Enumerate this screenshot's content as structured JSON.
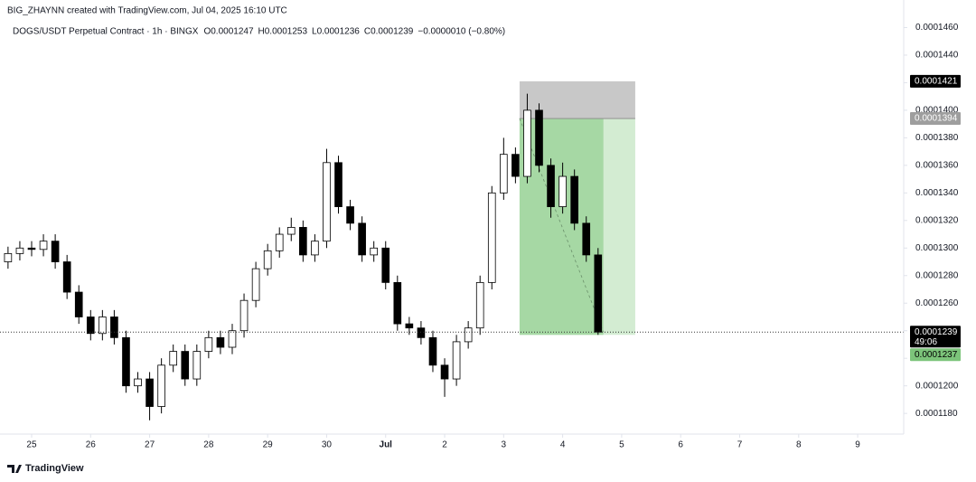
{
  "chart_data": {
    "type": "candlestick",
    "attribution": "BIG_ZHAYNN created with TradingView.com, Jul 04, 2025 16:10 UTC",
    "title": "DOGS/USDT Perpetual Contract · 1h · BINGX",
    "ohlc_texts": [
      "O0.0001247",
      "H0.0001253",
      "L0.0001236",
      "C0.0001239",
      "−0.0000010 (−0.80%)"
    ],
    "x": [
      -0.4,
      -0.2,
      0,
      0.2,
      0.4,
      0.6,
      0.8,
      1,
      1.2,
      1.4,
      1.6,
      1.8,
      2,
      2.2,
      2.4,
      2.6,
      2.8,
      3,
      3.2,
      3.4,
      3.6,
      3.8,
      4,
      4.2,
      4.4,
      4.6,
      4.8,
      5,
      5.2,
      5.4,
      5.6,
      5.8,
      6,
      6.2,
      6.4,
      6.6,
      6.8,
      7,
      7.2,
      7.4,
      7.6,
      7.8,
      8,
      8.2,
      8.4,
      8.6,
      8.8,
      9,
      9.2,
      9.4,
      9.6
    ],
    "open": [
      0.000129,
      0.0001296,
      0.00013,
      0.0001299,
      0.0001305,
      0.000129,
      0.0001268,
      0.000125,
      0.0001238,
      0.000125,
      0.0001235,
      0.00012,
      0.0001205,
      0.0001185,
      0.0001215,
      0.0001225,
      0.0001205,
      0.0001225,
      0.0001235,
      0.0001228,
      0.000124,
      0.0001262,
      0.0001285,
      0.0001298,
      0.000131,
      0.0001315,
      0.0001295,
      0.0001305,
      0.0001362,
      0.000133,
      0.0001318,
      0.0001295,
      0.00013,
      0.0001275,
      0.0001245,
      0.0001242,
      0.0001235,
      0.0001215,
      0.0001205,
      0.0001232,
      0.0001242,
      0.0001275,
      0.000134,
      0.0001368,
      0.0001352,
      0.00014,
      0.000136,
      0.000133,
      0.0001352,
      0.0001318,
      0.0001295
    ],
    "high": [
      0.0001301,
      0.0001305,
      0.0001305,
      0.000131,
      0.000131,
      0.0001295,
      0.0001273,
      0.0001255,
      0.0001255,
      0.0001255,
      0.000124,
      0.000121,
      0.000121,
      0.000122,
      0.000123,
      0.000123,
      0.000123,
      0.000124,
      0.000124,
      0.0001245,
      0.0001267,
      0.000129,
      0.0001303,
      0.0001315,
      0.0001322,
      0.000132,
      0.000131,
      0.0001372,
      0.0001367,
      0.0001335,
      0.0001323,
      0.0001305,
      0.0001305,
      0.000128,
      0.000125,
      0.0001247,
      0.000124,
      0.000122,
      0.0001237,
      0.0001247,
      0.000128,
      0.0001345,
      0.000138,
      0.0001373,
      0.0001412,
      0.0001405,
      0.0001365,
      0.0001362,
      0.0001357,
      0.0001323,
      0.00013
    ],
    "low": [
      0.0001285,
      0.0001291,
      0.0001294,
      0.0001294,
      0.0001285,
      0.0001263,
      0.0001245,
      0.0001233,
      0.0001233,
      0.000123,
      0.0001195,
      0.0001195,
      0.0001175,
      0.000118,
      0.000121,
      0.00012,
      0.00012,
      0.000122,
      0.0001223,
      0.0001223,
      0.0001235,
      0.0001257,
      0.000128,
      0.0001293,
      0.0001305,
      0.000129,
      0.000129,
      0.00013,
      0.0001325,
      0.0001313,
      0.000129,
      0.000129,
      0.000127,
      0.000124,
      0.0001237,
      0.000123,
      0.000121,
      0.0001192,
      0.00012,
      0.0001227,
      0.0001237,
      0.000127,
      0.0001335,
      0.0001347,
      0.0001347,
      0.0001355,
      0.0001322,
      0.0001325,
      0.0001313,
      0.000129,
      0.0001237
    ],
    "close": [
      0.0001296,
      0.00013,
      0.0001299,
      0.0001305,
      0.000129,
      0.0001268,
      0.000125,
      0.0001238,
      0.000125,
      0.0001235,
      0.00012,
      0.0001205,
      0.0001185,
      0.0001215,
      0.0001225,
      0.0001205,
      0.0001225,
      0.0001235,
      0.0001228,
      0.000124,
      0.0001262,
      0.0001285,
      0.0001298,
      0.000131,
      0.0001315,
      0.0001295,
      0.0001305,
      0.0001362,
      0.000133,
      0.0001318,
      0.0001295,
      0.00013,
      0.0001275,
      0.0001245,
      0.0001242,
      0.0001235,
      0.0001215,
      0.0001205,
      0.0001232,
      0.0001242,
      0.0001275,
      0.000134,
      0.0001368,
      0.0001352,
      0.00014,
      0.000136,
      0.000133,
      0.0001352,
      0.0001318,
      0.0001295,
      0.0001239
    ],
    "up_color": "#ffffff",
    "down_color": "#000000",
    "xlim": [
      -0.536,
      14.78
    ],
    "xticks": [
      {
        "value": 0,
        "label": "25"
      },
      {
        "value": 1,
        "label": "26"
      },
      {
        "value": 2,
        "label": "27"
      },
      {
        "value": 3,
        "label": "28"
      },
      {
        "value": 4,
        "label": "29"
      },
      {
        "value": 5,
        "label": "30"
      },
      {
        "value": 6,
        "label": "Jul"
      },
      {
        "value": 7,
        "label": "2"
      },
      {
        "value": 8,
        "label": "3"
      },
      {
        "value": 9,
        "label": "4"
      },
      {
        "value": 10,
        "label": "5"
      },
      {
        "value": 11,
        "label": "6"
      },
      {
        "value": 12,
        "label": "7"
      },
      {
        "value": 13,
        "label": "8"
      },
      {
        "value": 14,
        "label": "9"
      }
    ],
    "ylim": [
      0.0001165,
      0.000148
    ],
    "yticks": [
      {
        "value": 0.000118,
        "label": "0.0001180"
      },
      {
        "value": 0.00012,
        "label": "0.0001200"
      },
      {
        "value": 0.000122,
        "label": "0.0001220"
      },
      {
        "value": 0.000124,
        "label": "0.0001240"
      },
      {
        "value": 0.000126,
        "label": "0.0001260"
      },
      {
        "value": 0.000128,
        "label": "0.0001280"
      },
      {
        "value": 0.00013,
        "label": "0.0001300"
      },
      {
        "value": 0.000132,
        "label": "0.0001320"
      },
      {
        "value": 0.000134,
        "label": "0.0001340"
      },
      {
        "value": 0.000136,
        "label": "0.0001360"
      },
      {
        "value": 0.000138,
        "label": "0.0001380"
      },
      {
        "value": 0.00014,
        "label": "0.0001400"
      },
      {
        "value": 0.000142,
        "label": "0.0001420"
      },
      {
        "value": 0.000144,
        "label": "0.0001440"
      },
      {
        "value": 0.000146,
        "label": "0.0001460"
      }
    ],
    "grid": false,
    "position_tool": {
      "x": [
        8.27,
        10.23,
        9.69
      ],
      "stop": 0.0001421,
      "entry": 0.0001394,
      "target": 0.0001237,
      "stop_color": "#c8c8c8",
      "target_color": "#a6d8a4",
      "target_light_color": "#d3ecd2",
      "label_color": "#7cc47a"
    },
    "last_price": 0.0001239,
    "countdown": "49:06",
    "footer": "TradingView"
  }
}
